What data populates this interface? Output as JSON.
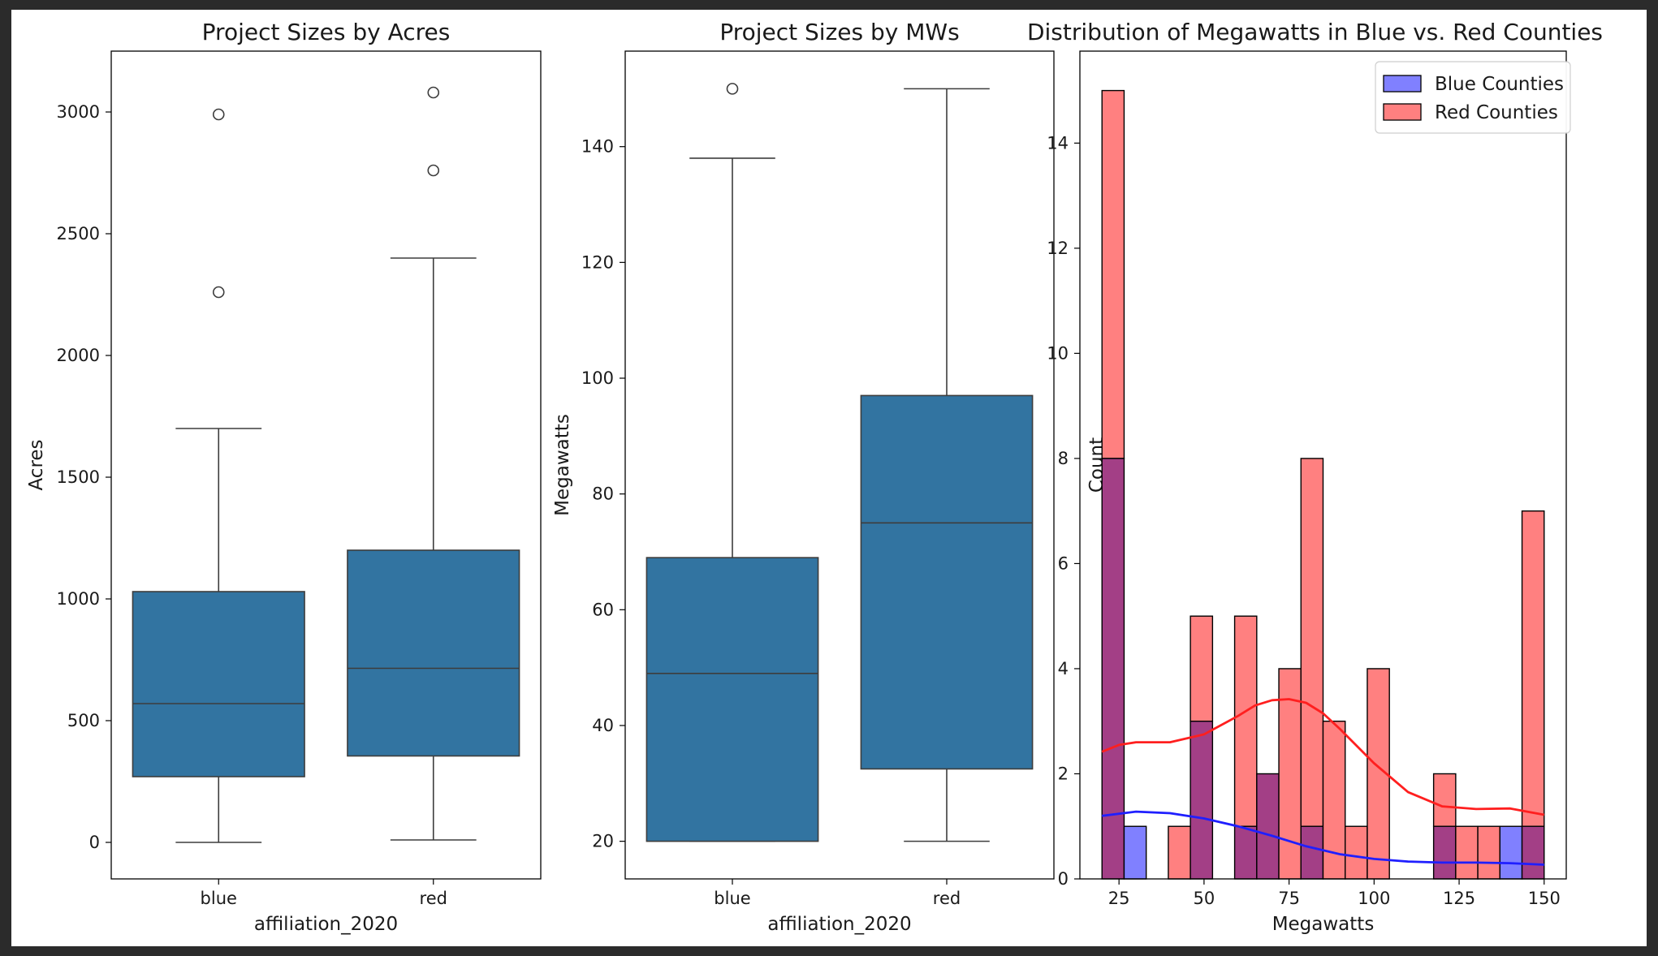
{
  "colors": {
    "box_fill": "#3274a1",
    "box_edge": "#3d3d3d",
    "blue_bar": "#8080ff",
    "red_bar": "#ff8080",
    "overlap_bar": "#a33f86",
    "blue_kde": "#1f1fff",
    "red_kde": "#ff1f1f"
  },
  "chart_data": [
    {
      "type": "box",
      "title": "Project Sizes by Acres",
      "xlabel": "affiliation_2020",
      "ylabel": "Acres",
      "ylim": [
        -150,
        3250
      ],
      "yticks": [
        0,
        500,
        1000,
        1500,
        2000,
        2500,
        3000
      ],
      "categories": [
        "blue",
        "red"
      ],
      "boxes": [
        {
          "name": "blue",
          "whisker_low": 0,
          "q1": 270,
          "median": 570,
          "q3": 1030,
          "whisker_high": 1700,
          "outliers": [
            2260,
            2990
          ]
        },
        {
          "name": "red",
          "whisker_low": 10,
          "q1": 355,
          "median": 715,
          "q3": 1200,
          "whisker_high": 2400,
          "outliers": [
            2760,
            3080
          ]
        }
      ]
    },
    {
      "type": "box",
      "title": "Project Sizes by MWs",
      "xlabel": "affiliation_2020",
      "ylabel": "Megawatts",
      "ylim": [
        13.5,
        156.5
      ],
      "yticks": [
        20,
        40,
        60,
        80,
        100,
        120,
        140
      ],
      "categories": [
        "blue",
        "red"
      ],
      "boxes": [
        {
          "name": "blue",
          "whisker_low": 20,
          "q1": 20,
          "median": 49,
          "q3": 69,
          "whisker_high": 138,
          "outliers": [
            150
          ]
        },
        {
          "name": "red",
          "whisker_low": 20,
          "q1": 32.5,
          "median": 75,
          "q3": 97,
          "whisker_high": 150,
          "outliers": []
        }
      ]
    },
    {
      "type": "histogram",
      "title": "Distribution of Megawatts in Blue vs. Red Counties",
      "xlabel": "Megawatts",
      "ylabel": "Count",
      "xlim": [
        13.5,
        156.5
      ],
      "ylim": [
        0,
        15.75
      ],
      "xticks": [
        25,
        50,
        75,
        100,
        125,
        150
      ],
      "yticks": [
        0,
        2,
        4,
        6,
        8,
        10,
        12,
        14
      ],
      "legend": "top-right",
      "bins": [
        20,
        26.5,
        33,
        39.5,
        46,
        52.5,
        59,
        65.5,
        72,
        78.5,
        85,
        91.5,
        98,
        104.5,
        111,
        117.5,
        124,
        130.5,
        137,
        143.5,
        150
      ],
      "series": [
        {
          "name": "Blue Counties",
          "counts": [
            8,
            1,
            0,
            0,
            3,
            0,
            1,
            2,
            0,
            1,
            0,
            0,
            0,
            0,
            0,
            1,
            0,
            0,
            1,
            1
          ],
          "kde_x": [
            20,
            30,
            40,
            50,
            60,
            70,
            80,
            90,
            100,
            110,
            120,
            130,
            140,
            150
          ],
          "kde_y": [
            1.2,
            1.28,
            1.25,
            1.15,
            1.0,
            0.82,
            0.62,
            0.47,
            0.38,
            0.33,
            0.31,
            0.31,
            0.3,
            0.27
          ]
        },
        {
          "name": "Red Counties",
          "counts": [
            15,
            0,
            0,
            1,
            5,
            0,
            5,
            2,
            4,
            8,
            3,
            1,
            4,
            0,
            0,
            2,
            1,
            1,
            0,
            7
          ],
          "kde_x": [
            20,
            25,
            30,
            40,
            50,
            60,
            65,
            70,
            75,
            80,
            85,
            90,
            100,
            110,
            120,
            130,
            140,
            150
          ],
          "kde_y": [
            2.42,
            2.55,
            2.6,
            2.6,
            2.75,
            3.1,
            3.3,
            3.4,
            3.42,
            3.35,
            3.15,
            2.85,
            2.2,
            1.65,
            1.38,
            1.33,
            1.34,
            1.22
          ]
        }
      ]
    }
  ]
}
